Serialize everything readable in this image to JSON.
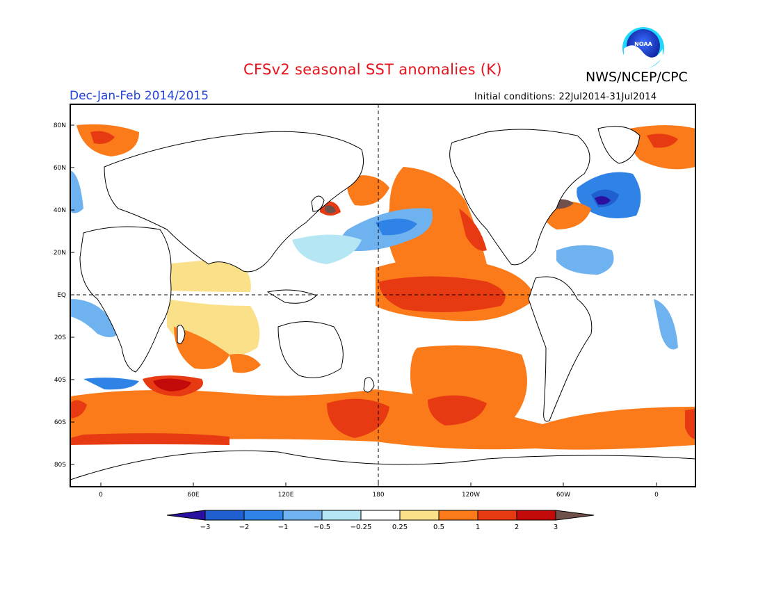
{
  "header": {
    "title": "CFSv2 seasonal SST anomalies (K)",
    "agency": "NWS/NCEP/CPC",
    "season": "Dec-Jan-Feb 2014/2015",
    "initial_conditions": "Initial conditions: 22Jul2014-31Jul2014"
  },
  "logo": {
    "text": "NOAA",
    "icon": "noaa-logo"
  },
  "map": {
    "lat_labels": [
      "80N",
      "60N",
      "40N",
      "20N",
      "EQ",
      "20S",
      "40S",
      "60S",
      "80S"
    ],
    "lon_labels": [
      "0",
      "60E",
      "120E",
      "180",
      "120W",
      "60W",
      "0"
    ],
    "colors": {
      "neg3": "#2a0fa0",
      "neg2": "#1f5fd0",
      "neg1": "#2f82e6",
      "neg05": "#6fb2f0",
      "neg025": "#b4e6f4",
      "zero": "#ffffff",
      "pos025": "#fbe08a",
      "pos05": "#fb7a1a",
      "pos1": "#e83a12",
      "pos2": "#c20a0a",
      "pos3": "#70504a"
    },
    "anomaly_regions": [
      {
        "name": "equatorial-pacific-warm",
        "level": "pos1"
      },
      {
        "name": "equatorial-pacific-core",
        "level": "pos2"
      },
      {
        "name": "north-pacific-cool",
        "level": "neg1"
      },
      {
        "name": "north-atlantic-cool",
        "level": "neg2"
      },
      {
        "name": "southern-ocean-warm",
        "level": "pos1"
      },
      {
        "name": "south-pacific-warm",
        "level": "pos1"
      },
      {
        "name": "gulf-stream-hotspot",
        "level": "pos3"
      }
    ]
  },
  "colorbar": {
    "labels": [
      "−3",
      "−2",
      "−1",
      "−0.5",
      "−0.25",
      "0.25",
      "0.5",
      "1",
      "2",
      "3"
    ]
  }
}
